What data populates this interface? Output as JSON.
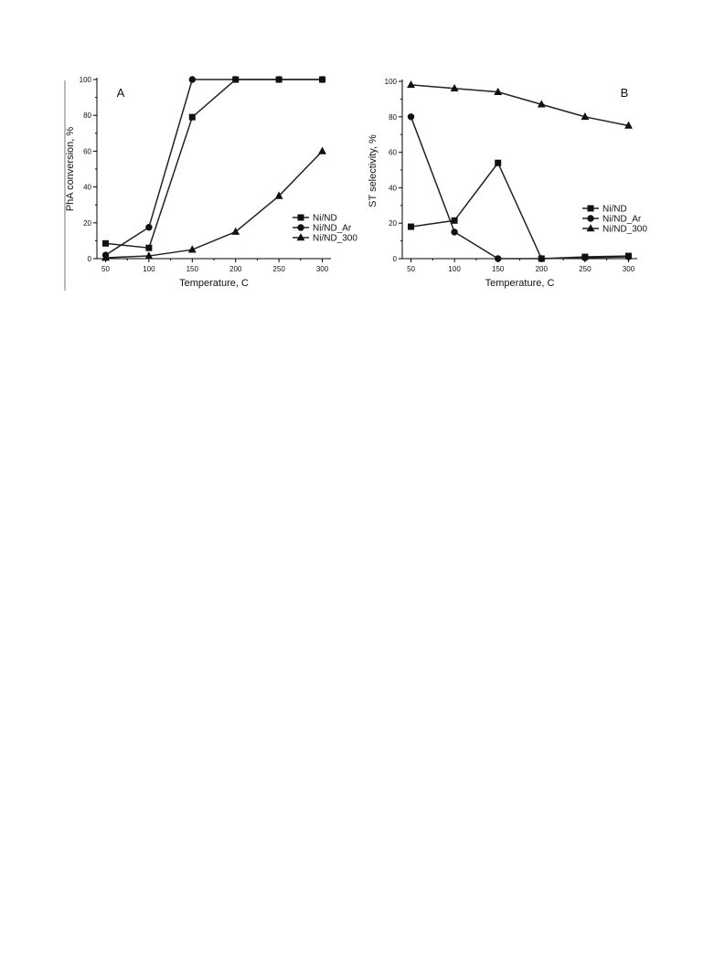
{
  "chart_data": [
    {
      "type": "line",
      "panel_label": "A",
      "xlabel": "Temperature, C",
      "ylabel": "PhA conversion, %",
      "x": [
        50,
        100,
        150,
        200,
        250,
        300
      ],
      "x_ticks": [
        "50",
        "100",
        "150",
        "200",
        "250",
        "300"
      ],
      "y_ticks": [
        "0",
        "20",
        "40",
        "60",
        "80",
        "100"
      ],
      "xlim": [
        40,
        310
      ],
      "ylim": [
        0,
        100
      ],
      "legend_position": "right",
      "series": [
        {
          "name": "Ni/ND",
          "marker": "square",
          "values": [
            8.5,
            6,
            79,
            100,
            100,
            100
          ]
        },
        {
          "name": "Ni/ND_Ar",
          "marker": "circle",
          "values": [
            2,
            17.5,
            100,
            100,
            100,
            100
          ]
        },
        {
          "name": "Ni/ND_300",
          "marker": "triangle",
          "values": [
            0.5,
            1.5,
            5,
            15,
            35,
            60
          ]
        }
      ]
    },
    {
      "type": "line",
      "panel_label": "B",
      "xlabel": "Temperature, C",
      "ylabel": "ST selectivity, %",
      "x": [
        50,
        100,
        150,
        200,
        250,
        300
      ],
      "x_ticks": [
        "50",
        "100",
        "150",
        "200",
        "250",
        "300"
      ],
      "y_ticks": [
        "0",
        "20",
        "40",
        "60",
        "80",
        "100"
      ],
      "xlim": [
        40,
        310
      ],
      "ylim": [
        0,
        100
      ],
      "legend_position": "right",
      "series": [
        {
          "name": "Ni/ND",
          "marker": "square",
          "values": [
            18,
            21.5,
            54,
            0,
            1,
            1.5
          ]
        },
        {
          "name": "Ni/ND_Ar",
          "marker": "circle",
          "values": [
            80,
            15,
            0,
            0,
            0.5,
            1
          ]
        },
        {
          "name": "Ni/ND_300",
          "marker": "triangle",
          "values": [
            98,
            96,
            94,
            87,
            80,
            75
          ]
        }
      ]
    }
  ]
}
